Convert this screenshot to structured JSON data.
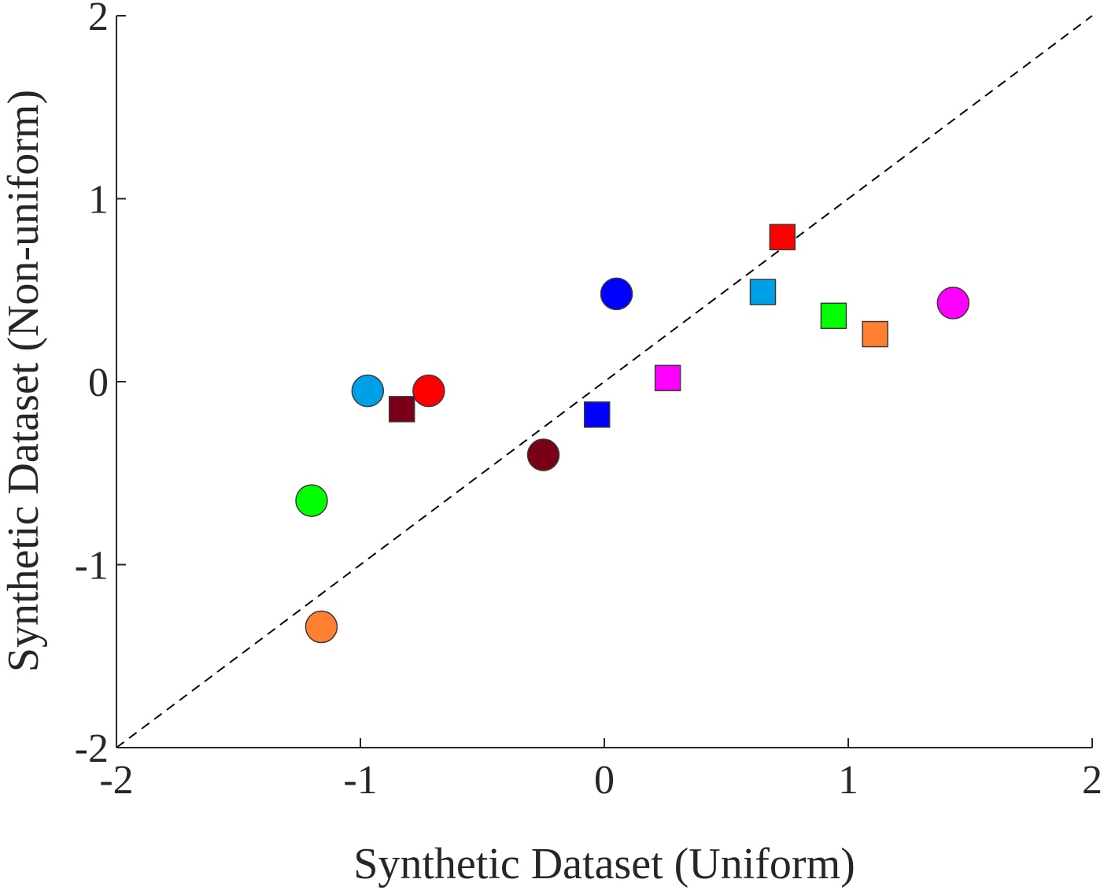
{
  "chart_data": {
    "type": "scatter",
    "title": "",
    "xlabel": "Synthetic Dataset (Uniform)",
    "ylabel": "Synthetic Dataset (Non-uniform)",
    "xlim": [
      -2,
      2
    ],
    "ylim": [
      -2,
      2
    ],
    "xticks": [
      -2,
      -1,
      0,
      1,
      2
    ],
    "yticks": [
      -2,
      -1,
      0,
      1,
      2
    ],
    "xtick_labels": [
      "-2",
      "-1",
      "0",
      "1",
      "2"
    ],
    "ytick_labels": [
      "-2",
      "-1",
      "0",
      "1",
      "2"
    ],
    "grid": false,
    "legend": "none",
    "reference_line": {
      "style": "dashed",
      "color": "#000000",
      "from": [
        -2,
        -2
      ],
      "to": [
        2,
        2
      ]
    },
    "series": [
      {
        "marker": "circle",
        "points": [
          {
            "x": 0.05,
            "y": 0.48,
            "color": "#0000ff"
          },
          {
            "x": -1.2,
            "y": -0.65,
            "color": "#00ff00"
          },
          {
            "x": -0.72,
            "y": -0.05,
            "color": "#ff0000"
          },
          {
            "x": -0.97,
            "y": -0.05,
            "color": "#00a0e8"
          },
          {
            "x": 1.43,
            "y": 0.43,
            "color": "#ff00ff"
          },
          {
            "x": -1.16,
            "y": -1.34,
            "color": "#ff8030"
          },
          {
            "x": -0.25,
            "y": -0.4,
            "color": "#7a0018"
          }
        ]
      },
      {
        "marker": "square",
        "points": [
          {
            "x": -0.03,
            "y": -0.18,
            "color": "#0000ff"
          },
          {
            "x": 0.94,
            "y": 0.36,
            "color": "#00ff00"
          },
          {
            "x": 0.73,
            "y": 0.79,
            "color": "#ff0000"
          },
          {
            "x": 0.65,
            "y": 0.49,
            "color": "#00a0e8"
          },
          {
            "x": 0.26,
            "y": 0.02,
            "color": "#ff00ff"
          },
          {
            "x": 1.11,
            "y": 0.26,
            "color": "#ff8030"
          },
          {
            "x": -0.83,
            "y": -0.15,
            "color": "#7a0018"
          }
        ]
      }
    ]
  }
}
